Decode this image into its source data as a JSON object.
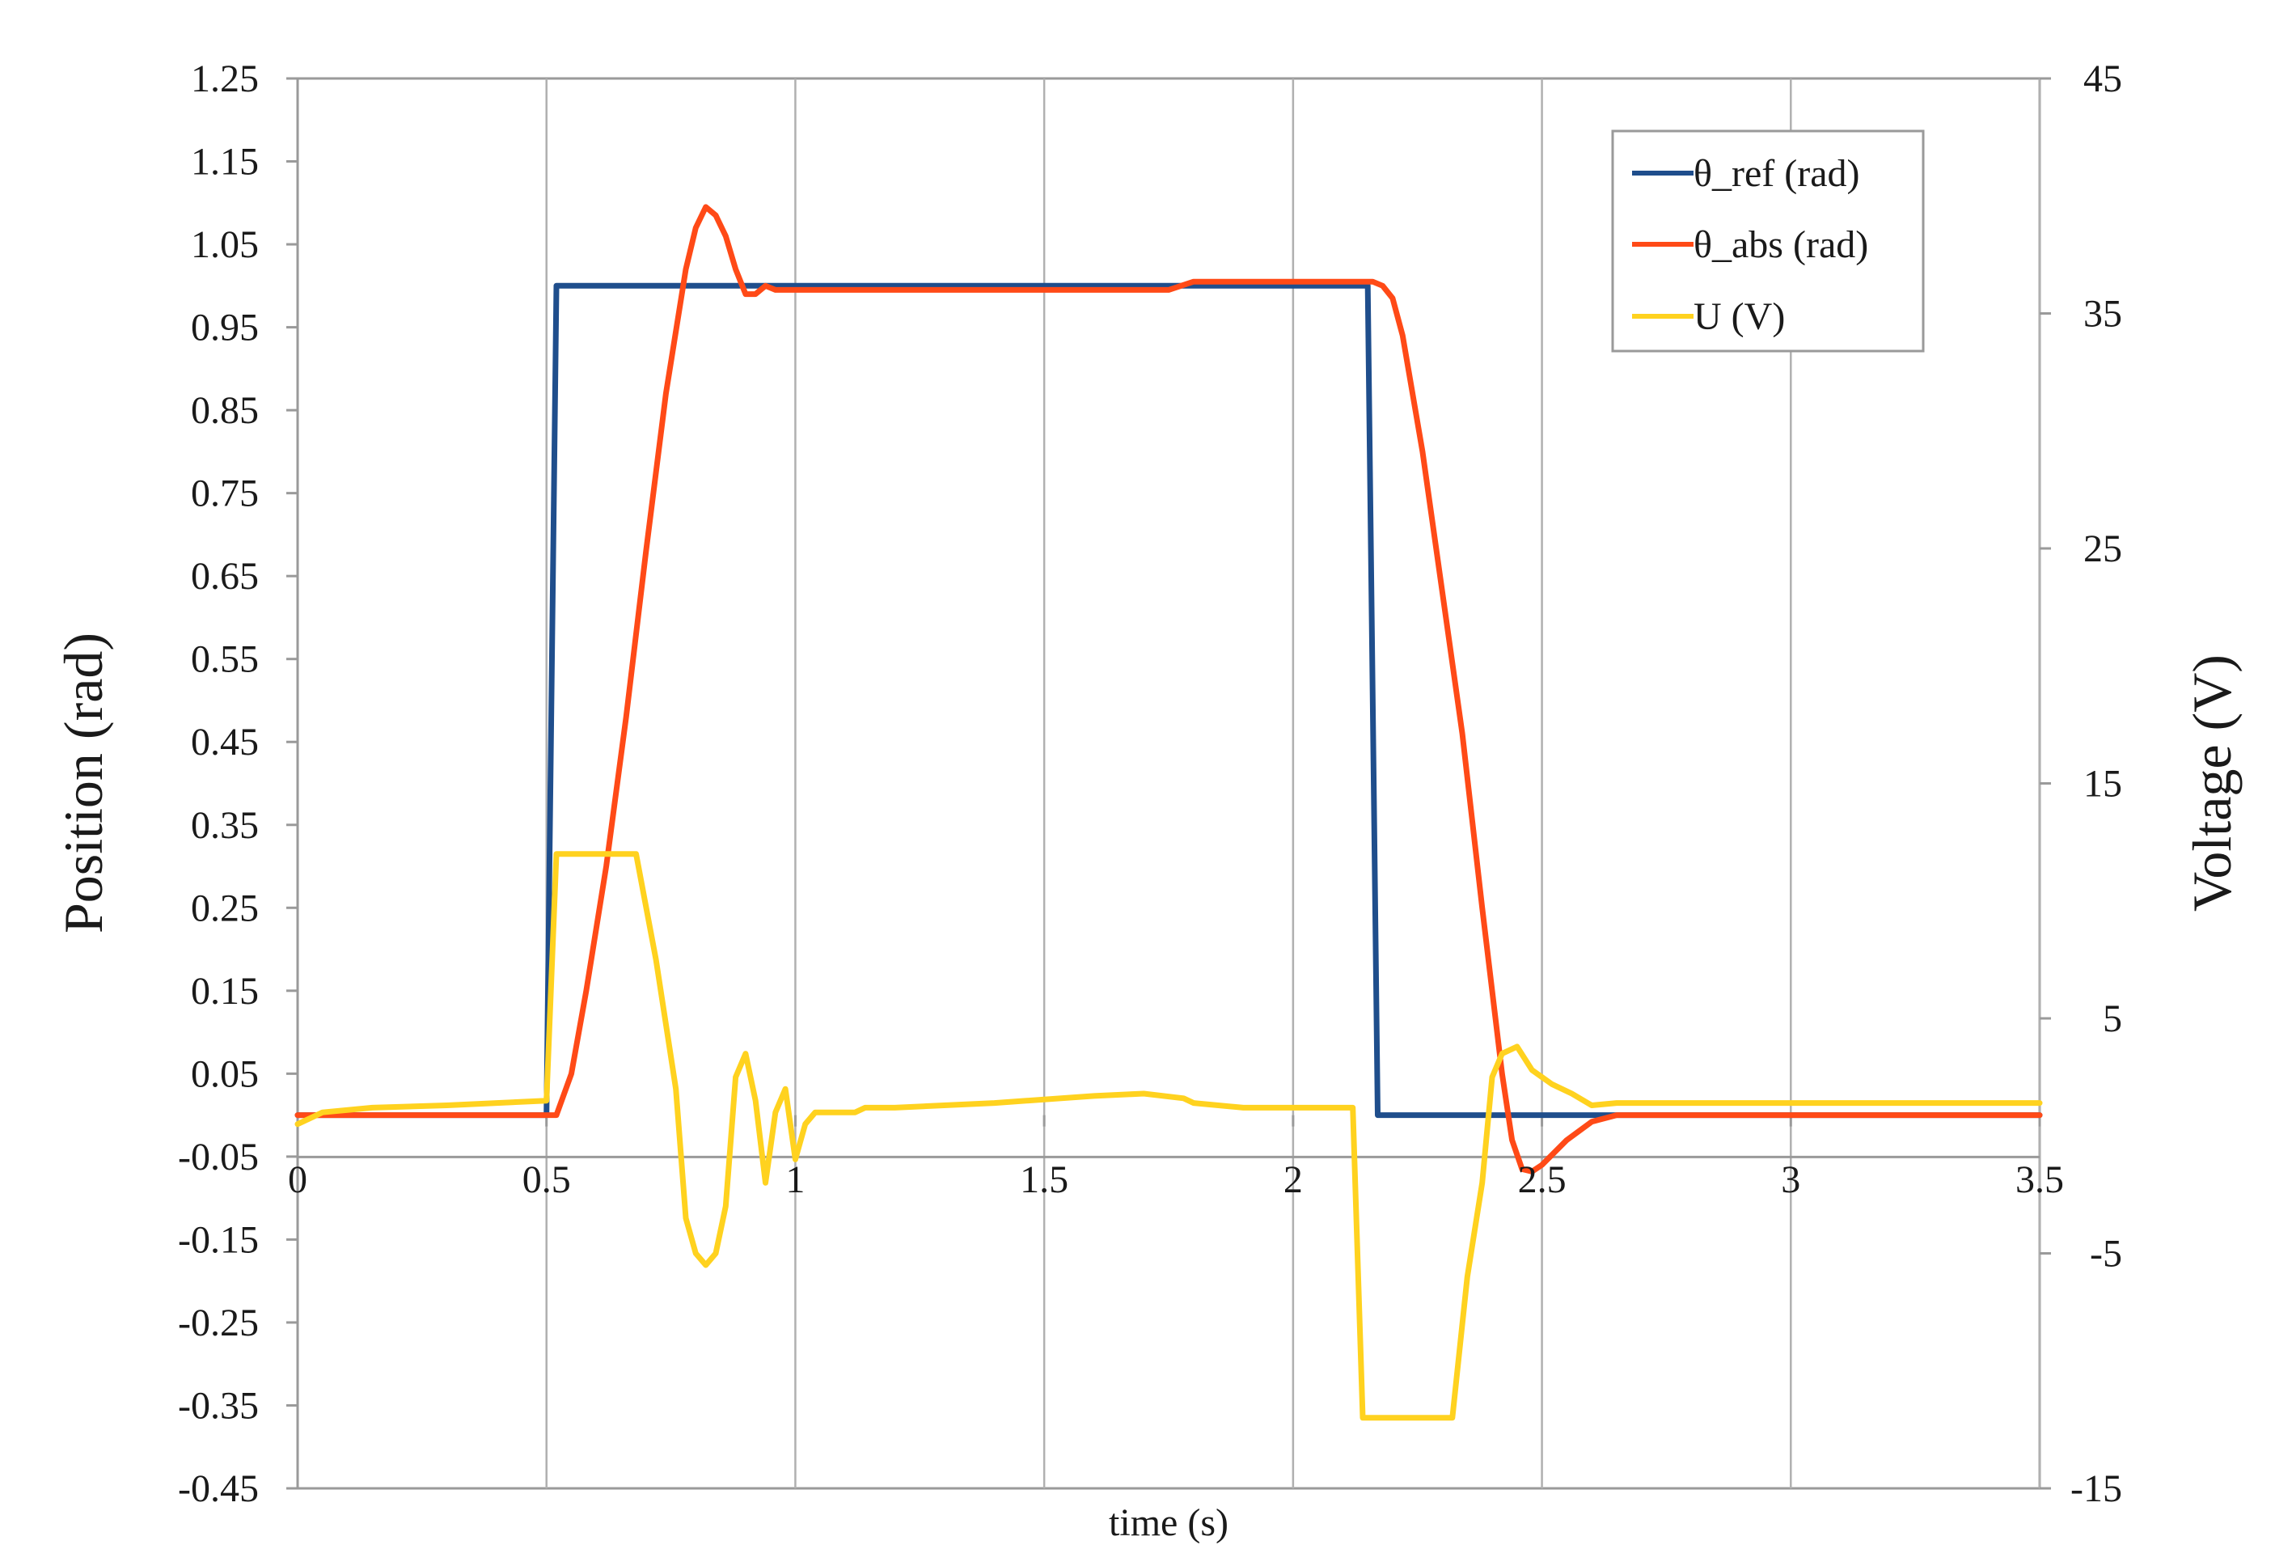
{
  "chart_data": {
    "type": "line",
    "xlabel": "time (s)",
    "ylabel": "Position (rad)",
    "y2label": "Voltage (V)",
    "xlim": [
      0,
      3.5
    ],
    "ylim": [
      -0.45,
      1.25
    ],
    "y2lim": [
      -15,
      45
    ],
    "x_ticks": [
      "0",
      "0.5",
      "1",
      "1.5",
      "2",
      "2.5",
      "3",
      "3.5"
    ],
    "y_ticks": [
      "-0.45",
      "-0.35",
      "-0.25",
      "-0.15",
      "-0.05",
      "0.05",
      "0.15",
      "0.25",
      "0.35",
      "0.45",
      "0.55",
      "0.65",
      "0.75",
      "0.85",
      "0.95",
      "1.05",
      "1.15",
      "1.25"
    ],
    "y2_ticks": [
      "-15",
      "-5",
      "5",
      "15",
      "25",
      "35",
      "45"
    ],
    "grid": "vertical-lines-only",
    "legend_position": "top-right",
    "series": [
      {
        "name": "θ_ref (rad)",
        "axis": "left",
        "color": "#1f4e8c",
        "x": [
          0,
          0.5,
          0.52,
          2.15,
          2.17,
          3.5
        ],
        "y": [
          0,
          0,
          1.0,
          1.0,
          0,
          0
        ]
      },
      {
        "name": "θ_abs (rad)",
        "axis": "left",
        "color": "#ff4a17",
        "x": [
          0,
          0.3,
          0.5,
          0.52,
          0.55,
          0.58,
          0.62,
          0.66,
          0.7,
          0.74,
          0.78,
          0.8,
          0.82,
          0.84,
          0.86,
          0.88,
          0.9,
          0.92,
          0.94,
          0.96,
          1.0,
          1.2,
          1.5,
          1.75,
          1.8,
          2.0,
          2.1,
          2.16,
          2.18,
          2.2,
          2.22,
          2.26,
          2.3,
          2.34,
          2.38,
          2.42,
          2.44,
          2.46,
          2.48,
          2.5,
          2.55,
          2.6,
          2.65,
          2.7,
          3.5
        ],
        "y": [
          0,
          0,
          0,
          0,
          0.05,
          0.15,
          0.3,
          0.48,
          0.68,
          0.87,
          1.02,
          1.07,
          1.095,
          1.085,
          1.06,
          1.02,
          0.99,
          0.99,
          1.0,
          0.995,
          0.995,
          0.995,
          0.995,
          0.995,
          1.005,
          1.005,
          1.005,
          1.005,
          1.0,
          0.985,
          0.94,
          0.8,
          0.63,
          0.46,
          0.25,
          0.05,
          -0.03,
          -0.065,
          -0.068,
          -0.06,
          -0.03,
          -0.008,
          0,
          0,
          0
        ]
      },
      {
        "name": "U (V)",
        "axis": "right",
        "color": "#ffd21f",
        "x": [
          0,
          0.05,
          0.15,
          0.3,
          0.4,
          0.5,
          0.52,
          0.68,
          0.72,
          0.76,
          0.78,
          0.8,
          0.82,
          0.84,
          0.86,
          0.88,
          0.9,
          0.92,
          0.94,
          0.96,
          0.98,
          1.0,
          1.02,
          1.04,
          1.08,
          1.12,
          1.14,
          1.2,
          1.4,
          1.6,
          1.7,
          1.78,
          1.8,
          1.9,
          2.0,
          2.12,
          2.14,
          2.16,
          2.32,
          2.35,
          2.38,
          2.4,
          2.42,
          2.45,
          2.48,
          2.52,
          2.56,
          2.6,
          2.65,
          2.8,
          3.0,
          3.2,
          3.5
        ],
        "y": [
          0.5,
          1.0,
          1.2,
          1.3,
          1.4,
          1.5,
          12,
          12,
          7.5,
          2.0,
          -3.5,
          -5.0,
          -5.5,
          -5.0,
          -3.0,
          2.5,
          3.5,
          1.5,
          -2.0,
          1.0,
          2.0,
          -1.0,
          0.5,
          1.0,
          1.0,
          1.0,
          1.2,
          1.2,
          1.4,
          1.7,
          1.8,
          1.6,
          1.4,
          1.2,
          1.2,
          1.2,
          -12,
          -12,
          -12,
          -6,
          -2,
          2.5,
          3.5,
          3.8,
          2.8,
          2.2,
          1.8,
          1.3,
          1.4,
          1.4,
          1.4,
          1.4,
          1.4
        ]
      }
    ]
  }
}
